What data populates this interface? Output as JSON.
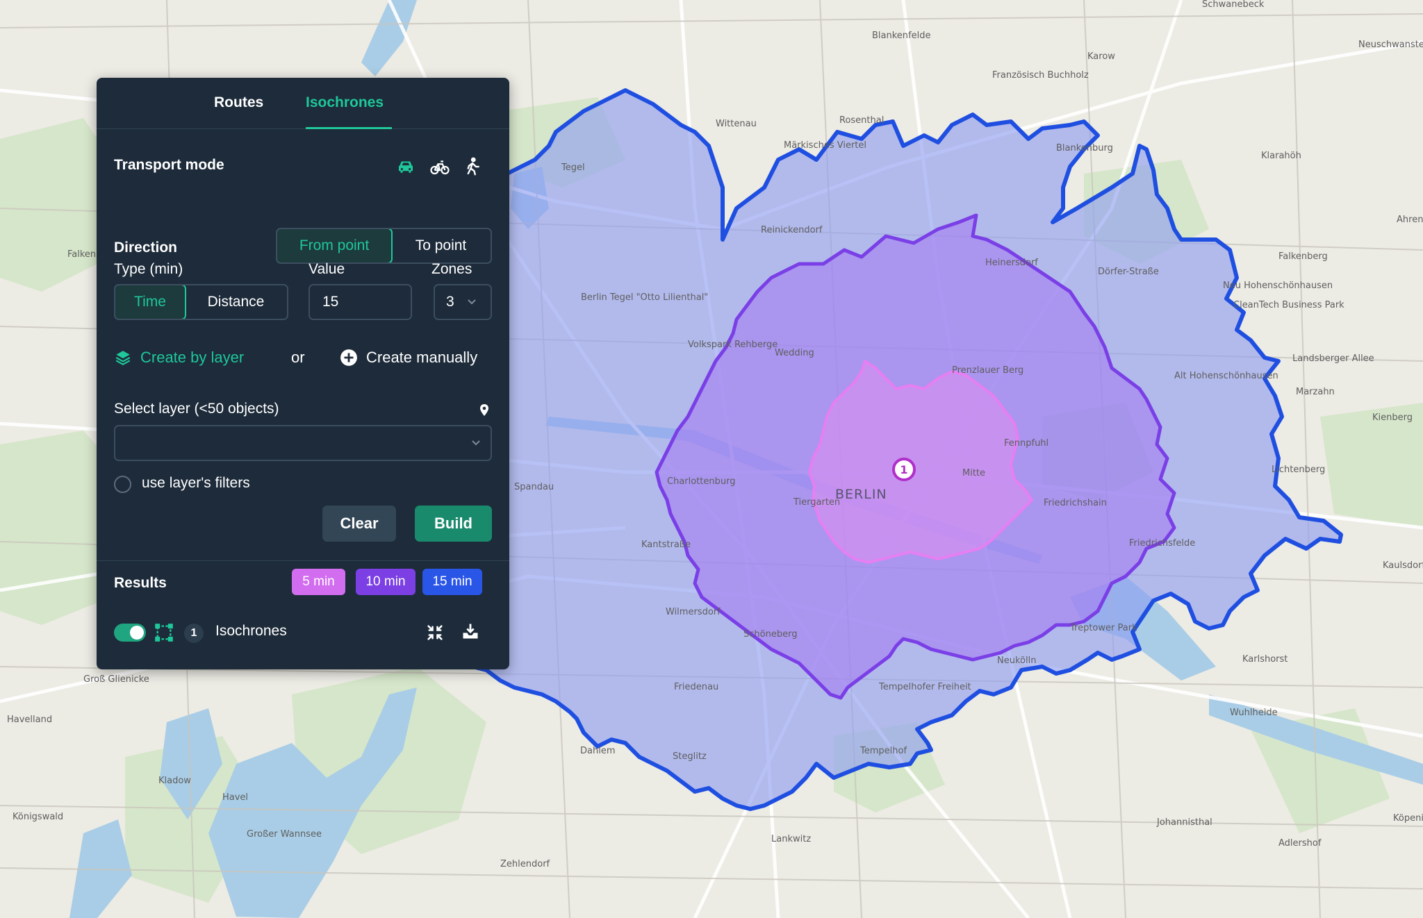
{
  "map": {
    "center_label": "BERLIN",
    "marker_label": "1",
    "colors": {
      "zone_15": "#8e9cf0",
      "zone_15_stroke": "#1f4fe0",
      "zone_10": "#a57ef0",
      "zone_10_stroke": "#7a3fe6",
      "zone_5": "#d98ef0",
      "zone_5_stroke": "#e57ff2"
    },
    "place_labels": [
      "Schwanebeck",
      "Neuschwanstein",
      "Blankenfelde",
      "Karow",
      "Französisch Buchholz",
      "Wittenau",
      "Rosenthal",
      "Märkisches Viertel",
      "Blankenburg",
      "Klarahöh",
      "Tegel",
      "Reinickendorf",
      "Heinersdorf",
      "Falkenberg",
      "Neu Hohenschönhausen",
      "Berlin Tegel \"Otto Lilienthal\"",
      "Volkspark Rehberge",
      "Wedding",
      "Prenzlauer Berg",
      "Alt Hohenschönhausen",
      "Charlottenburg",
      "Tiergarten",
      "Mitte",
      "Friedrichshain",
      "Fennpfuhl",
      "Kantstraße",
      "Friedrichsfelde",
      "Wilmersdorf",
      "Schöneberg",
      "Neukölln",
      "Treptower Park",
      "Karlshorst",
      "Friedenau",
      "Tempelhofer Freiheit",
      "Tempelhof",
      "Dahlem",
      "Steglitz",
      "Kladow",
      "Havel",
      "Großer Wannsee",
      "Königswald",
      "Groß Glienicke",
      "Zehlendorf",
      "Lankwitz",
      "Johannisthal",
      "Adlershof",
      "Falkensee",
      "Marzahn",
      "Kienberg",
      "Ahrensfelde",
      "Kaulsdorf",
      "Köpenick",
      "Havelland",
      "Spandau",
      "CleanTech Business Park",
      "Lichtenberg",
      "Dörfer-Straße",
      "Landsberger Allee",
      "Wuhlheide"
    ]
  },
  "panel": {
    "tabs": {
      "routes": "Routes",
      "isochrones": "Isochrones"
    },
    "transport_mode": {
      "label": "Transport mode",
      "icons": [
        "car-icon",
        "bicycle-icon",
        "walk-icon"
      ],
      "selected": "car"
    },
    "direction": {
      "label": "Direction",
      "from_point": "From point",
      "to_point": "To point"
    },
    "type": {
      "label": "Type (min)",
      "time": "Time",
      "distance": "Distance"
    },
    "value": {
      "label": "Value",
      "value": "15"
    },
    "zones": {
      "label": "Zones",
      "value": "3"
    },
    "create_by_layer": "Create by layer",
    "or": "or",
    "create_manually": "Create manually",
    "select_layer": {
      "label": "Select layer (<50 objects)",
      "value": ""
    },
    "use_filters": "use layer's filters",
    "clear": "Clear",
    "build": "Build",
    "results": {
      "label": "Results",
      "badges": [
        {
          "label": "5 min",
          "color": "#d26df0"
        },
        {
          "label": "10 min",
          "color": "#7b3fe4"
        },
        {
          "label": "15 min",
          "color": "#2a56e8"
        }
      ],
      "item": {
        "count": "1",
        "name": "Isochrones"
      }
    },
    "colors": {
      "accent": "#1fc79a",
      "background": "#1d2b3a"
    }
  }
}
